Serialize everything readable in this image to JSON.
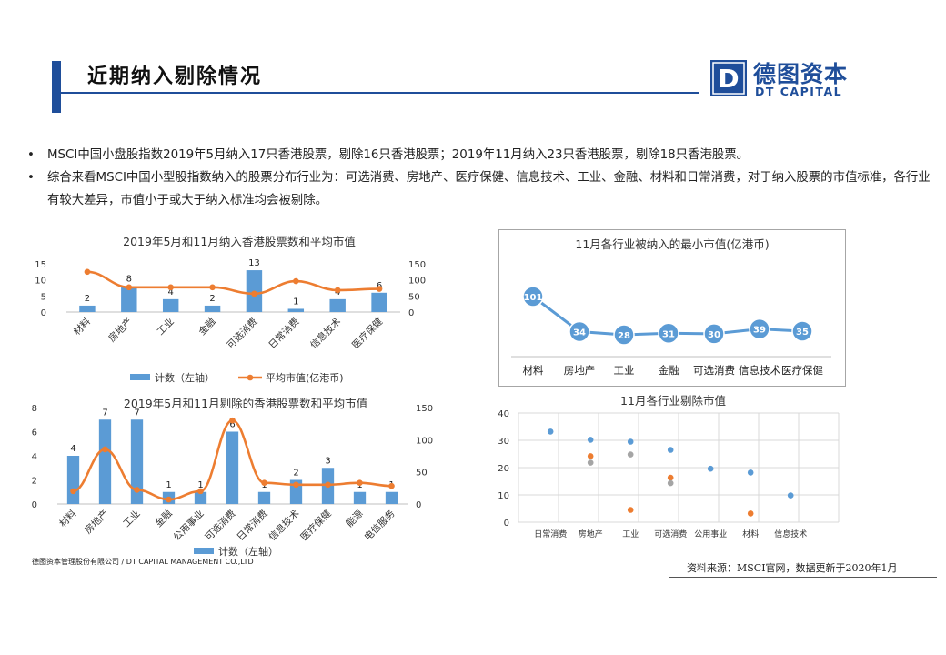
{
  "header": {
    "title": "近期纳入剔除情况"
  },
  "logo": {
    "mark": "D",
    "cn": "德图资本",
    "en": "DT CAPITAL"
  },
  "bullets": [
    "MSCI中国小盘股指数2019年5月纳入17只香港股票，剔除16只香港股票；2019年11月纳入23只香港股票，剔除18只香港股票。",
    "综合来看MSCI中国小型股指数纳入的股票分布行业为：可选消费、房地产、医疗保健、信息技术、工业、金融、材料和日常消费，对于纳入股票的市值标准，各行业有较大差异，市值小于或大于纳入标准均会被剔除。"
  ],
  "bullet_mark": "•",
  "footer": {
    "left": "德图资本管理股份有限公司 / DT CAPITAL MANAGEMENT CO.,LTD",
    "right": "资料来源：MSCI官网，数据更新于2020年1月"
  },
  "colors": {
    "brand": "#1f4e9a",
    "bar": "#5b9bd5",
    "line": "#ed7d31",
    "gray": "#a5a5a5"
  },
  "chart_data": [
    {
      "type": "bar",
      "title": "2019年5月和11月纳入香港股票数和平均市值",
      "categories": [
        "材料",
        "房地产",
        "工业",
        "金融",
        "可选消费",
        "日常消费",
        "信息技术",
        "医疗保健"
      ],
      "series": [
        {
          "name": "计数（左轴）",
          "type": "bar",
          "axis": "left",
          "values": [
            2,
            8,
            4,
            2,
            13,
            1,
            4,
            6
          ]
        },
        {
          "name": "平均市值(亿港币)",
          "type": "line",
          "axis": "right",
          "values": [
            125,
            77,
            77,
            77,
            57,
            96,
            68,
            72
          ]
        }
      ],
      "ylim_left": [
        0,
        15
      ],
      "yticks_left": [
        0,
        5,
        10,
        15
      ],
      "ylim_right": [
        0,
        150
      ],
      "yticks_right": [
        0,
        50,
        100,
        150
      ],
      "legend": "bottom"
    },
    {
      "type": "line",
      "title": "11月各行业被纳入的最小市值(亿港币)",
      "categories": [
        "材料",
        "房地产",
        "工业",
        "金融",
        "可选消费",
        "信息技术",
        "医疗保健"
      ],
      "series": [
        {
          "values": [
            101,
            34,
            28,
            31,
            30,
            39,
            35
          ]
        }
      ]
    },
    {
      "type": "bar",
      "title": "2019年5月和11月剔除的香港股票数和平均市值",
      "categories": [
        "材料",
        "房地产",
        "工业",
        "金融",
        "公用事业",
        "可选消费",
        "日常消费",
        "信息技术",
        "医疗保健",
        "能源",
        "电信服务"
      ],
      "series": [
        {
          "name": "计数（左轴）",
          "type": "bar",
          "axis": "left",
          "values": [
            4,
            7,
            7,
            1,
            1,
            6,
            1,
            2,
            3,
            1,
            1
          ]
        },
        {
          "type": "line",
          "axis": "right",
          "values": [
            20,
            85,
            22,
            7,
            20,
            130,
            33,
            30,
            30,
            33,
            28
          ]
        }
      ],
      "ylim_left": [
        0,
        8
      ],
      "yticks_left": [
        0,
        2,
        4,
        6,
        8
      ],
      "ylim_right": [
        0,
        150
      ],
      "yticks_right": [
        0,
        50,
        100,
        150
      ],
      "legend": "bottom"
    },
    {
      "type": "scatter",
      "title": "11月各行业剔除市值",
      "categories": [
        "日常消费",
        "房地产",
        "工业",
        "可选消费",
        "公用事业",
        "材料",
        "信息技术"
      ],
      "ylim": [
        0,
        40
      ],
      "yticks": [
        0,
        10,
        20,
        30,
        40
      ],
      "series": [
        {
          "color": "#5b9bd5",
          "points": [
            [
              0,
              33.2
            ],
            [
              1,
              30.2
            ],
            [
              2,
              29.5
            ],
            [
              3,
              26.5
            ],
            [
              4,
              19.6
            ],
            [
              5,
              18.2
            ],
            [
              6,
              9.8
            ]
          ]
        },
        {
          "color": "#ed7d31",
          "points": [
            [
              1,
              24.2
            ],
            [
              2,
              4.5
            ],
            [
              3,
              16.3
            ],
            [
              5,
              3.2
            ]
          ]
        },
        {
          "color": "#a5a5a5",
          "points": [
            [
              1,
              21.8
            ],
            [
              2,
              24.8
            ],
            [
              3,
              14.3
            ]
          ]
        }
      ]
    }
  ]
}
